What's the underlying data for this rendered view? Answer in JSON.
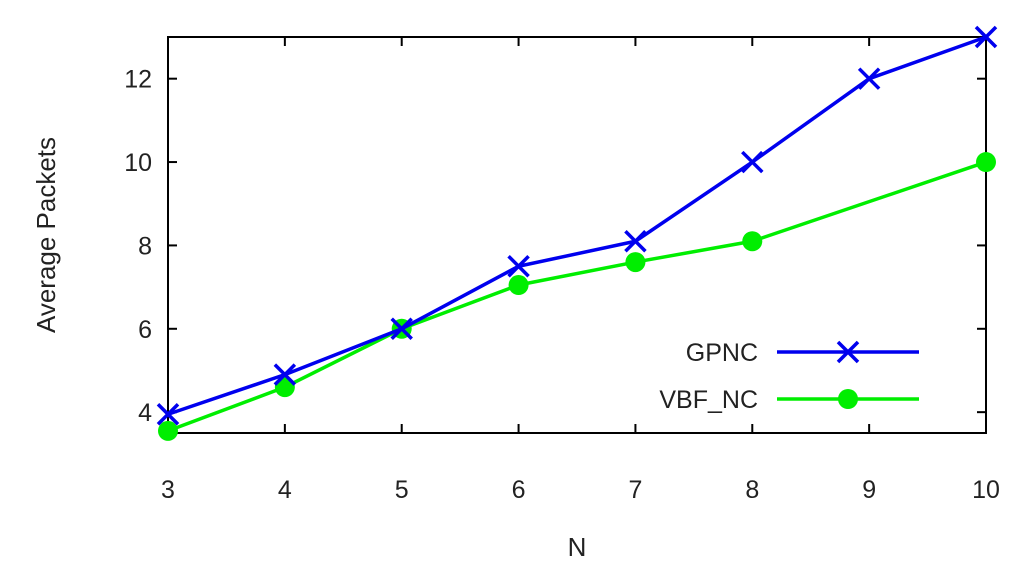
{
  "chart_data": {
    "type": "line",
    "title": "",
    "xlabel": "N",
    "ylabel": "Average Packets",
    "xlim": [
      3,
      10
    ],
    "ylim": [
      3.5,
      13
    ],
    "xticks": [
      3,
      4,
      5,
      6,
      7,
      8,
      9,
      10
    ],
    "yticks": [
      4,
      6,
      8,
      10,
      12
    ],
    "grid": false,
    "legend_position": "bottom-right",
    "series": [
      {
        "name": "GPNC",
        "color": "#0000ee",
        "marker": "x",
        "x": [
          3,
          4,
          5,
          6,
          7,
          8,
          9,
          10
        ],
        "y": [
          3.95,
          4.9,
          6.0,
          7.5,
          8.1,
          10.0,
          12.0,
          13.0
        ]
      },
      {
        "name": "VBF_NC",
        "color": "#00ee00",
        "marker": "circle",
        "x": [
          3,
          4,
          5,
          6,
          7,
          8,
          9,
          10
        ],
        "y": [
          3.55,
          4.6,
          6.0,
          7.05,
          7.6,
          8.1,
          null,
          10.0
        ]
      }
    ]
  }
}
